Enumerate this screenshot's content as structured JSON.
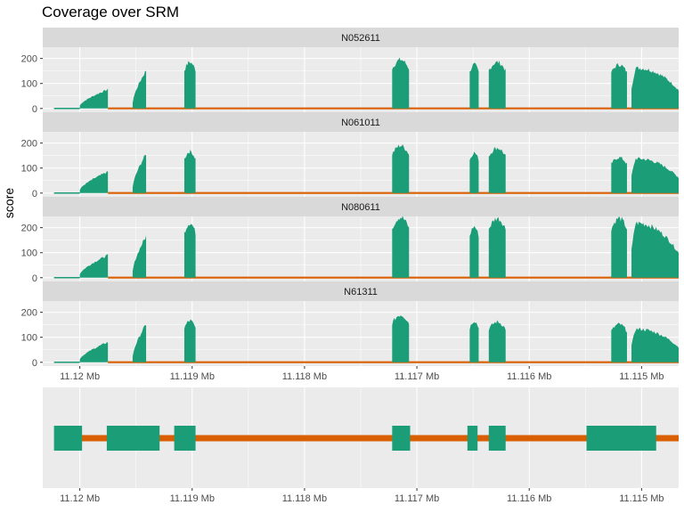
{
  "chart_data": {
    "type": "area",
    "title": "Coverage over SRM",
    "ylabel": "score",
    "xlabel": "",
    "x_reversed": true,
    "x_range": [
      11.12033,
      11.11467
    ],
    "x_ticks": [
      {
        "value": 11.12,
        "label": "11.12 Mb"
      },
      {
        "value": 11.119,
        "label": "11.119 Mb"
      },
      {
        "value": 11.118,
        "label": "11.118 Mb"
      },
      {
        "value": 11.117,
        "label": "11.117 Mb"
      },
      {
        "value": 11.116,
        "label": "11.116 Mb"
      },
      {
        "value": 11.115,
        "label": "11.115 Mb"
      }
    ],
    "y_range": [
      -15,
      245
    ],
    "y_ticks": [
      0,
      100,
      200
    ],
    "grid": true,
    "colors": {
      "exon": "#1b9e77",
      "intron": "#d95f02",
      "panel": "#ebebeb",
      "strip": "#d9d9d9",
      "grid": "#ffffff"
    },
    "samples": [
      {
        "name": "N052611",
        "exons": [
          {
            "start": 11.12,
            "end": 11.11975,
            "peak": 80,
            "shape": "ramp"
          },
          {
            "start": 11.11953,
            "end": 11.11941,
            "peak": 160,
            "shape": "ramp"
          },
          {
            "start": 11.11907,
            "end": 11.11897,
            "peak": 195,
            "shape": "flat"
          },
          {
            "start": 11.11722,
            "end": 11.11707,
            "peak": 205,
            "shape": "flat"
          },
          {
            "start": 11.11653,
            "end": 11.11645,
            "peak": 185,
            "shape": "flat"
          },
          {
            "start": 11.11636,
            "end": 11.11621,
            "peak": 195,
            "shape": "flat"
          },
          {
            "start": 11.11527,
            "end": 11.11513,
            "peak": 185,
            "shape": "flat"
          },
          {
            "start": 11.11509,
            "end": 11.11467,
            "peak": 170,
            "shape": "decay"
          }
        ]
      },
      {
        "name": "N061011",
        "exons": [
          {
            "start": 11.12,
            "end": 11.11975,
            "peak": 90,
            "shape": "ramp"
          },
          {
            "start": 11.11953,
            "end": 11.11941,
            "peak": 165,
            "shape": "ramp"
          },
          {
            "start": 11.11907,
            "end": 11.11897,
            "peak": 175,
            "shape": "flat"
          },
          {
            "start": 11.11722,
            "end": 11.11707,
            "peak": 200,
            "shape": "flat"
          },
          {
            "start": 11.11653,
            "end": 11.11645,
            "peak": 170,
            "shape": "flat"
          },
          {
            "start": 11.11636,
            "end": 11.11621,
            "peak": 190,
            "shape": "flat"
          },
          {
            "start": 11.11527,
            "end": 11.11513,
            "peak": 150,
            "shape": "flat"
          },
          {
            "start": 11.11509,
            "end": 11.11467,
            "peak": 145,
            "shape": "decay"
          }
        ]
      },
      {
        "name": "N080611",
        "exons": [
          {
            "start": 11.12,
            "end": 11.11975,
            "peak": 95,
            "shape": "ramp"
          },
          {
            "start": 11.11953,
            "end": 11.11941,
            "peak": 175,
            "shape": "ramp"
          },
          {
            "start": 11.11907,
            "end": 11.11897,
            "peak": 230,
            "shape": "flat"
          },
          {
            "start": 11.11722,
            "end": 11.11707,
            "peak": 255,
            "shape": "flat"
          },
          {
            "start": 11.11653,
            "end": 11.11645,
            "peak": 215,
            "shape": "flat"
          },
          {
            "start": 11.11636,
            "end": 11.11621,
            "peak": 250,
            "shape": "flat"
          },
          {
            "start": 11.11527,
            "end": 11.11513,
            "peak": 250,
            "shape": "flat"
          },
          {
            "start": 11.11509,
            "end": 11.11467,
            "peak": 230,
            "shape": "decay"
          }
        ]
      },
      {
        "name": "N61311",
        "exons": [
          {
            "start": 11.12,
            "end": 11.11975,
            "peak": 85,
            "shape": "ramp"
          },
          {
            "start": 11.11953,
            "end": 11.11941,
            "peak": 160,
            "shape": "ramp"
          },
          {
            "start": 11.11907,
            "end": 11.11897,
            "peak": 175,
            "shape": "flat"
          },
          {
            "start": 11.11722,
            "end": 11.11707,
            "peak": 200,
            "shape": "flat"
          },
          {
            "start": 11.11653,
            "end": 11.11645,
            "peak": 175,
            "shape": "flat"
          },
          {
            "start": 11.11636,
            "end": 11.11621,
            "peak": 170,
            "shape": "flat"
          },
          {
            "start": 11.11527,
            "end": 11.11513,
            "peak": 160,
            "shape": "flat"
          },
          {
            "start": 11.11509,
            "end": 11.11467,
            "peak": 140,
            "shape": "decay"
          }
        ]
      }
    ],
    "gene_model": {
      "intron_span": [
        11.12,
        11.11467
      ],
      "exons": [
        {
          "start": 11.12023,
          "end": 11.11998
        },
        {
          "start": 11.11976,
          "end": 11.11929
        },
        {
          "start": 11.11916,
          "end": 11.11897
        },
        {
          "start": 11.11722,
          "end": 11.11706
        },
        {
          "start": 11.11655,
          "end": 11.11646
        },
        {
          "start": 11.11636,
          "end": 11.11621
        },
        {
          "start": 11.11549,
          "end": 11.11487
        }
      ]
    }
  }
}
